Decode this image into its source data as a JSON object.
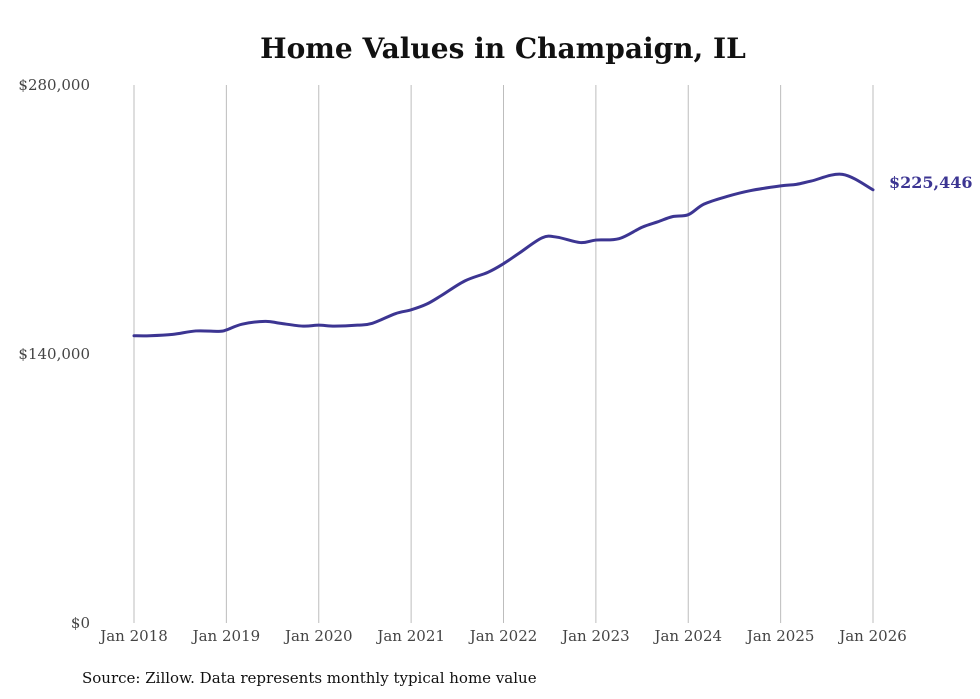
{
  "colors": {
    "series": "#3c3592",
    "grid": "#bdbdbd"
  },
  "chart_data": {
    "type": "line",
    "title": "Home Values in Champaign, IL",
    "xlabel": "",
    "ylabel": "",
    "ylim": [
      0,
      280000
    ],
    "y_ticks": [
      {
        "value": 280000,
        "label": "$280,000"
      },
      {
        "value": 140000,
        "label": "$140,000"
      },
      {
        "value": 0,
        "label": "$0"
      }
    ],
    "x_ticks": [
      {
        "value": 2018,
        "label": "Jan 2018"
      },
      {
        "value": 2019,
        "label": "Jan 2019"
      },
      {
        "value": 2020,
        "label": "Jan 2020"
      },
      {
        "value": 2021,
        "label": "Jan 2021"
      },
      {
        "value": 2022,
        "label": "Jan 2022"
      },
      {
        "value": 2023,
        "label": "Jan 2023"
      },
      {
        "value": 2024,
        "label": "Jan 2024"
      },
      {
        "value": 2025,
        "label": "Jan 2025"
      },
      {
        "value": 2026,
        "label": "Jan 2026"
      }
    ],
    "xlim": [
      2018,
      2026
    ],
    "grid": "vertical",
    "series": [
      {
        "name": "Typical home value",
        "x": [
          2018.0,
          2018.17,
          2018.42,
          2018.67,
          2018.92,
          2019.0,
          2019.17,
          2019.42,
          2019.58,
          2019.83,
          2020.0,
          2020.17,
          2020.42,
          2020.58,
          2020.83,
          2021.0,
          2021.17,
          2021.33,
          2021.58,
          2021.83,
          2022.0,
          2022.17,
          2022.42,
          2022.58,
          2022.83,
          2023.0,
          2023.25,
          2023.5,
          2023.67,
          2023.83,
          2024.0,
          2024.17,
          2024.42,
          2024.67,
          2025.0,
          2025.17,
          2025.33,
          2025.67,
          2026.0
        ],
        "values": [
          149500,
          149500,
          150200,
          152000,
          151800,
          152500,
          155500,
          157000,
          156000,
          154500,
          155000,
          154500,
          155000,
          156000,
          161000,
          163000,
          166000,
          170500,
          178000,
          182500,
          187000,
          192500,
          200500,
          200800,
          198000,
          199300,
          200000,
          206000,
          208800,
          211500,
          212500,
          218000,
          222000,
          225000,
          227500,
          228300,
          230000,
          233500,
          225446
        ]
      }
    ],
    "end_label": "$225,446",
    "source": "Source: Zillow. Data represents monthly typical home value"
  }
}
